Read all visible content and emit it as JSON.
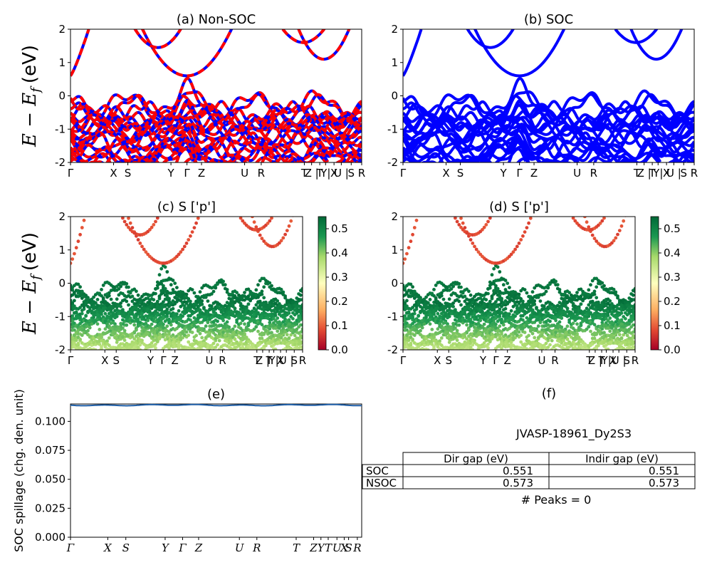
{
  "chart_data": [
    {
      "panel": "a",
      "type": "line",
      "title": "(a) Non-SOC",
      "ylabel": "E − E_f (eV)",
      "ylabel_main": "E − E",
      "ylabel_sub": "f",
      "ylabel_unit": "(eV)",
      "ylim": [
        -2,
        2
      ],
      "yticks": [
        -2,
        -1,
        0,
        1,
        2
      ],
      "x_ticks": [
        {
          "label": "Γ",
          "x": 0.0
        },
        {
          "label": "X",
          "x": 0.148
        },
        {
          "label": "S",
          "x": 0.197
        },
        {
          "label": "Y",
          "x": 0.345
        },
        {
          "label": "Γ",
          "x": 0.4
        },
        {
          "label": "Z",
          "x": 0.45
        },
        {
          "label": "U",
          "x": 0.598
        },
        {
          "label": "R",
          "x": 0.655
        },
        {
          "label": "T",
          "x": 0.803
        },
        {
          "label": "Z |",
          "x": 0.828
        },
        {
          "label": "T",
          "x": 0.856
        },
        {
          "label": "Y|",
          "x": 0.876
        },
        {
          "label": "X",
          "x": 0.905
        },
        {
          "label": "U |",
          "x": 0.93
        },
        {
          "label": "S",
          "x": 0.964
        },
        {
          "label": "R",
          "x": 1.0
        }
      ],
      "series_colors": {
        "spin_up": "#ff0000",
        "spin_down": "#0000ff"
      },
      "dashed_overlay": true
    },
    {
      "panel": "b",
      "type": "line",
      "title": "(b) SOC",
      "ylim": [
        -2,
        2
      ],
      "yticks": [
        -2,
        -1,
        0,
        1,
        2
      ],
      "x_ticks": [
        {
          "label": "Γ",
          "x": 0.0
        },
        {
          "label": "X",
          "x": 0.148
        },
        {
          "label": "S",
          "x": 0.197
        },
        {
          "label": "Y",
          "x": 0.345
        },
        {
          "label": "Γ",
          "x": 0.4
        },
        {
          "label": "Z",
          "x": 0.45
        },
        {
          "label": "U",
          "x": 0.598
        },
        {
          "label": "R",
          "x": 0.655
        },
        {
          "label": "T",
          "x": 0.803
        },
        {
          "label": "Z |",
          "x": 0.828
        },
        {
          "label": "T",
          "x": 0.856
        },
        {
          "label": "Y|",
          "x": 0.876
        },
        {
          "label": "X",
          "x": 0.905
        },
        {
          "label": "U |",
          "x": 0.93
        },
        {
          "label": "S",
          "x": 0.964
        },
        {
          "label": "R",
          "x": 1.0
        }
      ],
      "series_colors": {
        "bands": "#0000ff"
      }
    },
    {
      "panel": "c",
      "type": "scatter",
      "title": "(c)  S ['p']",
      "ylabel": "E − E_f (eV)",
      "ylim": [
        -2,
        2
      ],
      "yticks": [
        -2,
        -1,
        0,
        1,
        2
      ],
      "x_ticks": [
        {
          "label": "Γ",
          "x": 0.0
        },
        {
          "label": "X",
          "x": 0.148
        },
        {
          "label": "S",
          "x": 0.197
        },
        {
          "label": "Y",
          "x": 0.345
        },
        {
          "label": "Γ",
          "x": 0.4
        },
        {
          "label": "Z",
          "x": 0.45
        },
        {
          "label": "U",
          "x": 0.598
        },
        {
          "label": "R",
          "x": 0.655
        },
        {
          "label": "T",
          "x": 0.803
        },
        {
          "label": "Z |",
          "x": 0.828
        },
        {
          "label": "T",
          "x": 0.856
        },
        {
          "label": "Y|",
          "x": 0.876
        },
        {
          "label": "X",
          "x": 0.905
        },
        {
          "label": "U |",
          "x": 0.93
        },
        {
          "label": "S",
          "x": 0.964
        },
        {
          "label": "R",
          "x": 1.0
        }
      ],
      "colorbar": {
        "min": 0.0,
        "max": 0.55,
        "ticks": [
          "0.0",
          "0.1",
          "0.2",
          "0.3",
          "0.4",
          "0.5"
        ],
        "colormap": "RdYlGn"
      }
    },
    {
      "panel": "d",
      "type": "scatter",
      "title": "(d) S ['p']",
      "ylim": [
        -2,
        2
      ],
      "yticks": [
        -2,
        -1,
        0,
        1,
        2
      ],
      "x_ticks": [
        {
          "label": "Γ",
          "x": 0.0
        },
        {
          "label": "X",
          "x": 0.148
        },
        {
          "label": "S",
          "x": 0.197
        },
        {
          "label": "Y",
          "x": 0.345
        },
        {
          "label": "Γ",
          "x": 0.4
        },
        {
          "label": "Z",
          "x": 0.45
        },
        {
          "label": "U",
          "x": 0.598
        },
        {
          "label": "R",
          "x": 0.655
        },
        {
          "label": "T",
          "x": 0.803
        },
        {
          "label": "Z |",
          "x": 0.828
        },
        {
          "label": "T",
          "x": 0.856
        },
        {
          "label": "Y|",
          "x": 0.876
        },
        {
          "label": "X",
          "x": 0.905
        },
        {
          "label": "U |",
          "x": 0.93
        },
        {
          "label": "S",
          "x": 0.964
        },
        {
          "label": "R",
          "x": 1.0
        }
      ],
      "colorbar": {
        "min": 0.0,
        "max": 0.55,
        "ticks": [
          "0.0",
          "0.1",
          "0.2",
          "0.3",
          "0.4",
          "0.5"
        ],
        "colormap": "RdYlGn"
      }
    },
    {
      "panel": "e",
      "type": "line",
      "title": "(e)",
      "ylabel": "SOC spillage (chg. den. unit)",
      "ylim": [
        0,
        0.115
      ],
      "yticks": [
        "0.000",
        "0.025",
        "0.050",
        "0.075",
        "0.100"
      ],
      "ytick_values": [
        0,
        0.025,
        0.05,
        0.075,
        0.1
      ],
      "x_ticks": [
        {
          "label": "Γ",
          "x": 0.0
        },
        {
          "label": "X",
          "x": 0.128
        },
        {
          "label": "S",
          "x": 0.19
        },
        {
          "label": "Y",
          "x": 0.325
        },
        {
          "label": "Γ",
          "x": 0.385
        },
        {
          "label": "Z",
          "x": 0.44
        },
        {
          "label": "U",
          "x": 0.58
        },
        {
          "label": "R",
          "x": 0.64
        },
        {
          "label": "T",
          "x": 0.775
        },
        {
          "label": "Z",
          "x": 0.835
        },
        {
          "label": "Y",
          "x": 0.86
        },
        {
          "label": "T",
          "x": 0.885
        },
        {
          "label": "U",
          "x": 0.915
        },
        {
          "label": "X",
          "x": 0.94
        },
        {
          "label": "S",
          "x": 0.955
        },
        {
          "label": "R",
          "x": 0.985
        }
      ],
      "series": [
        {
          "values_const": 0.114,
          "color": "#1f5fa8"
        }
      ]
    },
    {
      "panel": "f",
      "type": "table",
      "title": "(f)",
      "material": "JVASP-18961_Dy2S3",
      "columns": [
        "Dir gap (eV)",
        "Indir gap (eV)"
      ],
      "rows": [
        {
          "label": "SOC",
          "values": [
            "0.551",
            "0.551"
          ]
        },
        {
          "label": "NSOC",
          "values": [
            "0.573",
            "0.573"
          ]
        }
      ],
      "peaks_text": "# Peaks = 0"
    }
  ]
}
